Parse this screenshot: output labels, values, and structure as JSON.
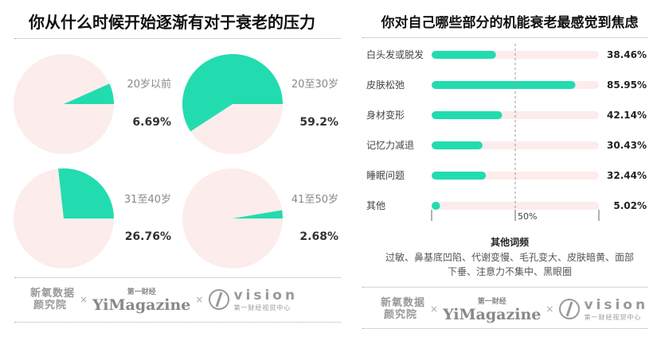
{
  "left_title": "你从什么时候开始逐渐有对于衰老的压力",
  "right_title": "你对自己哪些部分的机能衰老最感觉到焦虑",
  "colors": {
    "accent": "#22dcb0",
    "pie_bg": "#fdecec",
    "bar_bg": "#fdecec"
  },
  "chart_data": [
    {
      "type": "pie",
      "title": "你从什么时候开始逐渐有对于衰老的压力",
      "slices": [
        {
          "label": "20岁以前",
          "value": 6.69,
          "pct_text": "6.69%"
        },
        {
          "label": "20至30岁",
          "value": 59.2,
          "pct_text": "59.2%"
        },
        {
          "label": "31至40岁",
          "value": 26.76,
          "pct_text": "26.76%"
        },
        {
          "label": "41至50岁",
          "value": 2.68,
          "pct_text": "2.68%"
        }
      ]
    },
    {
      "type": "bar",
      "title": "你对自己哪些部分的机能衰老最感觉到焦虑",
      "categories": [
        "白头发或脱发",
        "皮肤松弛",
        "身材变形",
        "记忆力减退",
        "睡眠问题",
        "其他"
      ],
      "values": [
        38.46,
        85.95,
        42.14,
        30.43,
        32.44,
        5.02
      ],
      "value_labels": [
        "38.46%",
        "85.95%",
        "42.14%",
        "30.43%",
        "32.44%",
        "5.02%"
      ],
      "xlim": [
        0,
        100
      ],
      "reference_line": {
        "value": 50,
        "label": "50%"
      }
    }
  ],
  "other": {
    "title": "其他词频",
    "text": "过敏、鼻基底凹陷、代谢变慢、毛孔变大、皮肤暗黄、面部下垂、注意力不集中、黑眼圈"
  },
  "footer": {
    "brand1_line1": "新氧数据",
    "brand1_line2": "颜究院",
    "sep": "×",
    "yi_small": "第一财经",
    "yi_big": "YiMagazine",
    "vision_big": "vision",
    "vision_small": "第一财经视觉中心"
  }
}
